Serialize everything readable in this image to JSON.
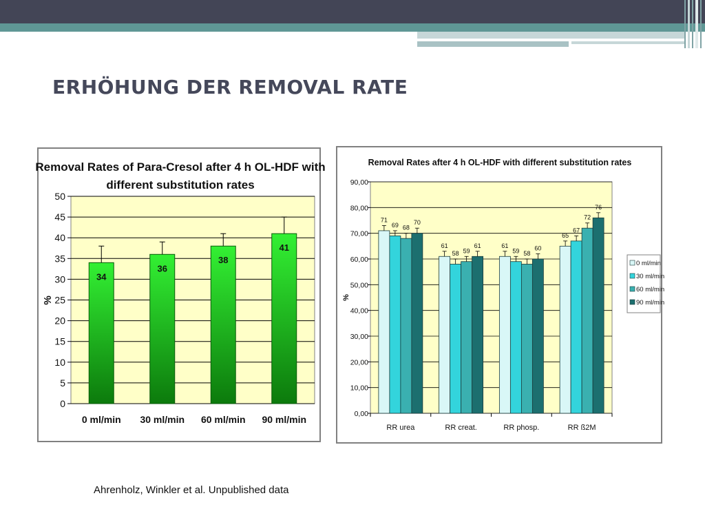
{
  "slide": {
    "title": "ERHÖHUNG DER REMOVAL RATE",
    "source": "Ahrenholz, Winkler et al. Unpublished data"
  },
  "colors": {
    "header_dark": "#434556",
    "header_teal": "#5f9795",
    "plot_bg": "#ffffc8",
    "bar_green": "#22d022",
    "series_colors": [
      "#d9f7f7",
      "#33d4dc",
      "#3ab0b0",
      "#1c6f6f"
    ]
  },
  "chart_data": [
    {
      "type": "bar",
      "title": "Removal Rates of Para-Cresol after 4 h OL-HDF with different substitution rates",
      "title_lines": [
        "Removal Rates of Para-Cresol after 4 h OL-HDF with",
        "different substitution rates"
      ],
      "xlabel": "",
      "ylabel": "%",
      "categories": [
        "0 ml/min",
        "30 ml/min",
        "60 ml/min",
        "90 ml/min"
      ],
      "values": [
        34,
        36,
        38,
        41
      ],
      "data_labels": [
        "34",
        "36",
        "38",
        "41"
      ],
      "error_upper": [
        38,
        39,
        41,
        45
      ],
      "ylim": [
        0,
        50
      ],
      "yticks": [
        "0",
        "5",
        "10",
        "15",
        "20",
        "25",
        "30",
        "35",
        "40",
        "45",
        "50"
      ],
      "grid": true,
      "legend": "none"
    },
    {
      "type": "bar",
      "title": "Removal Rates after 4 h OL-HDF with different substitution rates",
      "xlabel": "",
      "ylabel": "%",
      "categories": [
        "RR urea",
        "RR creat.",
        "RR phosp.",
        "RR ß2M"
      ],
      "series": [
        {
          "name": "0 ml/min",
          "values": [
            71,
            61,
            61,
            65
          ],
          "labels": [
            "71",
            "61",
            "61",
            "65"
          ]
        },
        {
          "name": "30 ml/min",
          "values": [
            69,
            58,
            59,
            67
          ],
          "labels": [
            "69",
            "58",
            "59",
            "67"
          ]
        },
        {
          "name": "60 ml/min",
          "values": [
            68,
            59,
            58,
            72
          ],
          "labels": [
            "68",
            "59",
            "58",
            "72"
          ]
        },
        {
          "name": "90 ml/min",
          "values": [
            70,
            61,
            60,
            76
          ],
          "labels": [
            "70",
            "61",
            "60",
            "76"
          ]
        }
      ],
      "ylim": [
        0,
        90
      ],
      "yticks": [
        "0,00",
        "10,00",
        "20,00",
        "30,00",
        "40,00",
        "50,00",
        "60,00",
        "70,00",
        "80,00",
        "90,00"
      ],
      "grid": true,
      "legend": "right"
    }
  ]
}
